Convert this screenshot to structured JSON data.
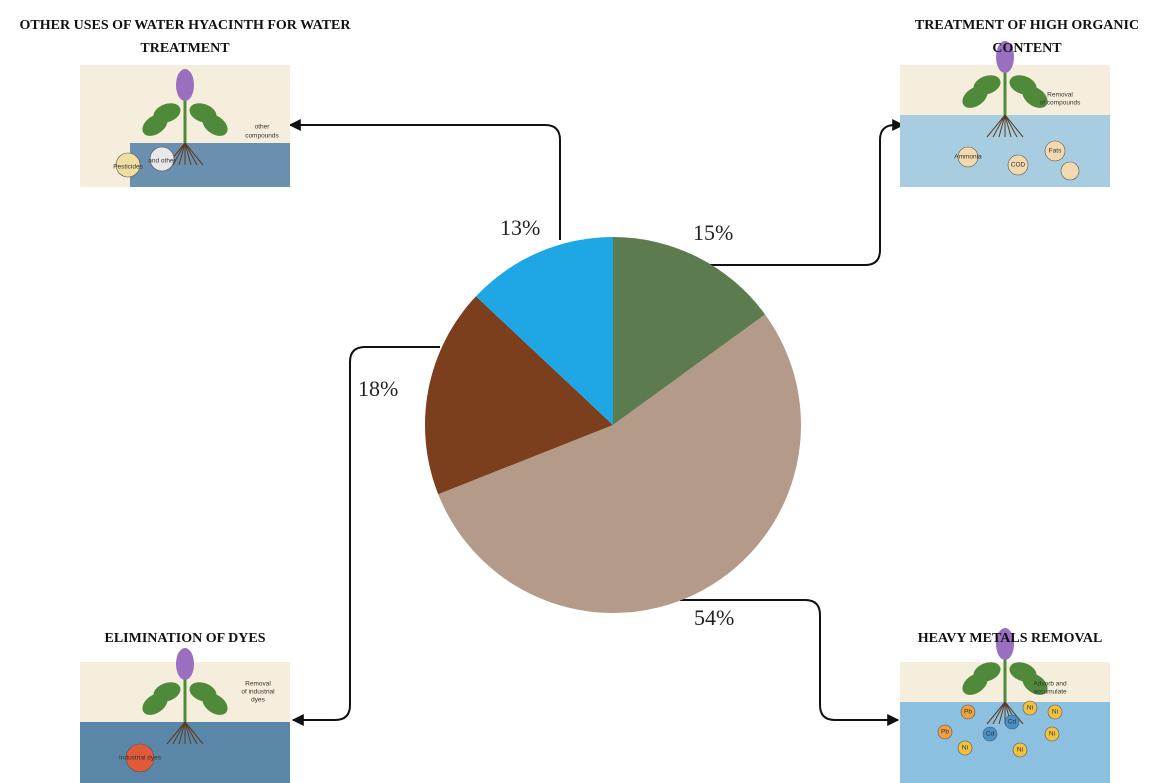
{
  "chart_data": {
    "type": "pie",
    "categories": [
      "TREATMENT OF HIGH ORGANIC CONTENT",
      "HEAVY METALS REMOVAL",
      "ELIMINATION OF DYES",
      "OTHER USES OF WATER HYACINTH FOR WATER TREATMENT"
    ],
    "values": [
      15,
      54,
      18,
      13
    ],
    "value_labels": [
      "15%",
      "54%",
      "18%",
      "13%"
    ],
    "colors": [
      "#5c7b4f",
      "#b49a88",
      "#7b3f1e",
      "#1fa6e4"
    ]
  },
  "panels": [
    {
      "texts": [
        "Removal",
        "of compounds",
        "Ammonia",
        "COD",
        "Fats"
      ]
    },
    {
      "texts": [
        "Adsorb and",
        "accumulate",
        "Pb",
        "Pb",
        "Cd",
        "Cd",
        "Ni",
        "Ni",
        "Ni",
        "Ni",
        "Ni"
      ]
    },
    {
      "texts": [
        "Removal",
        "of industrial",
        "dyes",
        "Industrial dyes"
      ]
    },
    {
      "texts": [
        "other",
        "compounds",
        "Pesticides",
        "and other"
      ]
    }
  ]
}
